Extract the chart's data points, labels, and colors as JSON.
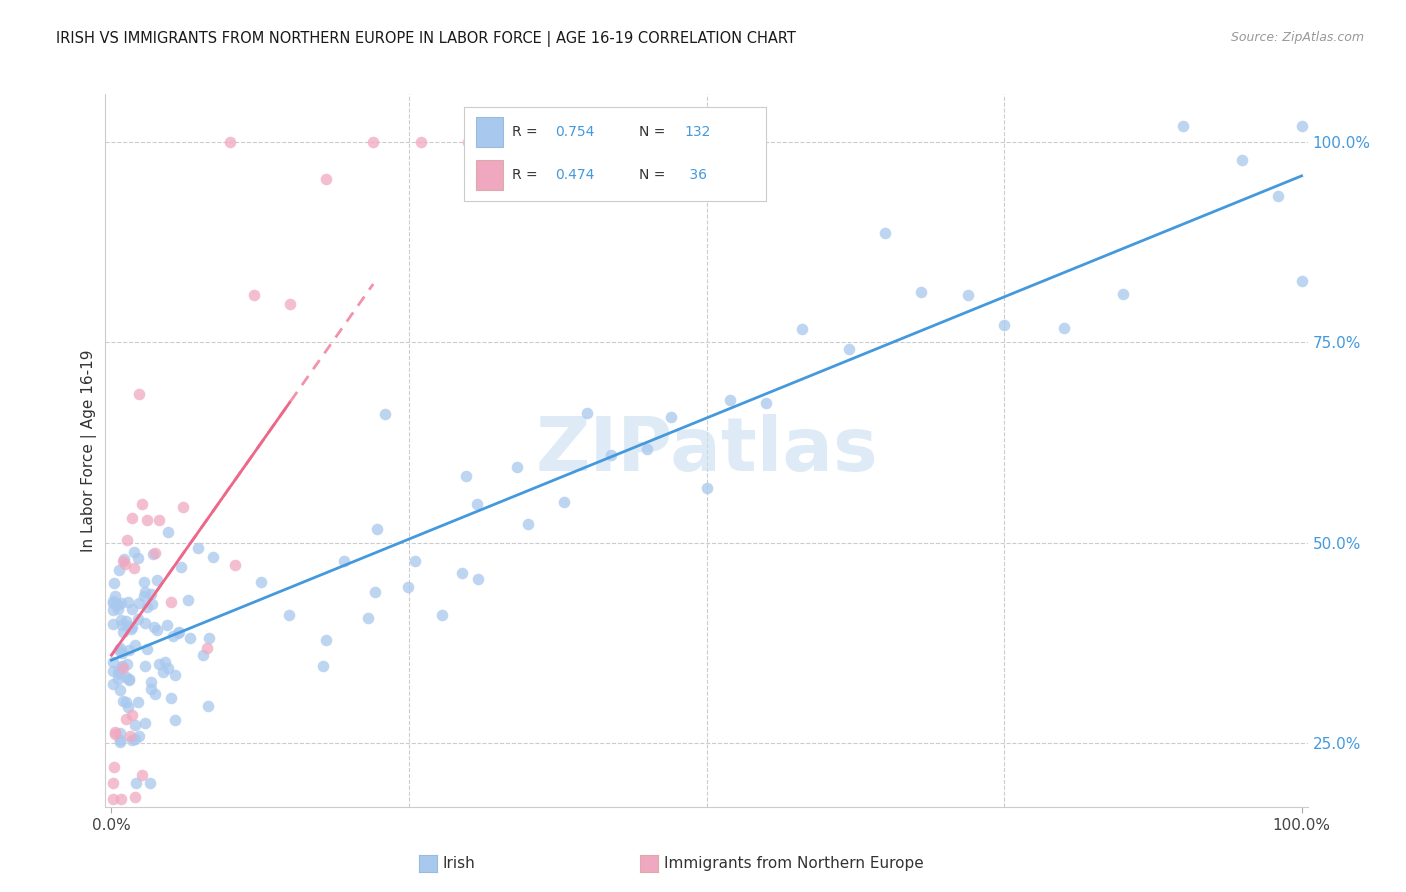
{
  "title": "IRISH VS IMMIGRANTS FROM NORTHERN EUROPE IN LABOR FORCE | AGE 16-19 CORRELATION CHART",
  "source": "Source: ZipAtlas.com",
  "ylabel": "In Labor Force | Age 16-19",
  "R_irish": 0.754,
  "N_irish": 132,
  "R_north": 0.474,
  "N_north": 36,
  "irish_scatter_color": "#a8c8ee",
  "north_scatter_color": "#f0a8c0",
  "irish_line_color": "#4499dd",
  "north_line_color": "#ee6688",
  "north_line_dash": [
    4,
    3
  ],
  "legend_color": "#4499dd",
  "watermark_color": "#c8dff0",
  "title_color": "#1a1a1a",
  "source_color": "#999999",
  "ylabel_color": "#333333",
  "grid_color": "#cccccc",
  "tick_label_color": "#4499dd",
  "xtick_color": "#444444",
  "background": "#ffffff",
  "ylim_low": 0.17,
  "ylim_high": 1.06,
  "xlim_low": -0.005,
  "xlim_high": 1.005
}
